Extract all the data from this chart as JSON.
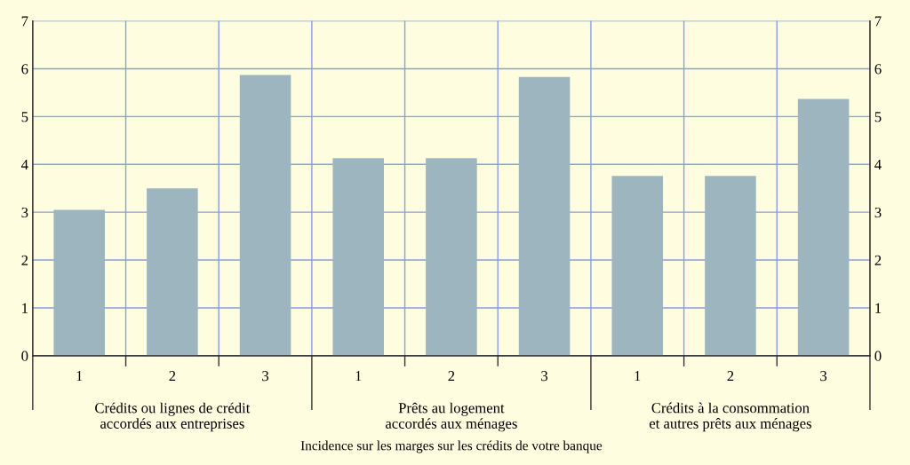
{
  "chart_data": {
    "type": "bar",
    "categories": [
      "1",
      "2",
      "3",
      "1",
      "2",
      "3",
      "1",
      "2",
      "3"
    ],
    "values": [
      3.05,
      3.5,
      5.87,
      4.13,
      4.13,
      5.83,
      3.76,
      3.76,
      5.37
    ],
    "color": "#9db5bf",
    "ylim": [
      0,
      7
    ],
    "yticks": [
      0,
      1,
      2,
      3,
      4,
      5,
      6,
      7
    ],
    "y2lim": [
      0,
      7
    ],
    "y2ticks": [
      0,
      1,
      2,
      3,
      4,
      5,
      6,
      7
    ],
    "xlabel": "Incidence sur les marges sur les crédits de votre banque",
    "annotations": [
      "Crédits ou lignes de crédit\naccordés aux entreprises",
      "Prêts au logement\naccordés aux ménages",
      "Crédits à la consommation\net autres prêts aux ménages"
    ],
    "grid": true
  }
}
